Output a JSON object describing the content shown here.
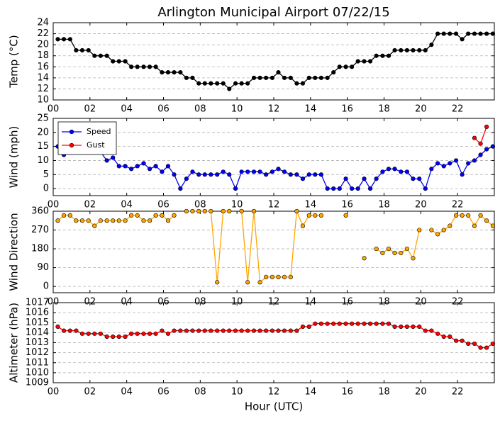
{
  "chart_data": [
    {
      "type": "line",
      "title": "Arlington Municipal Airport 07/22/15",
      "ylabel": "Temp (°C)",
      "x": [
        0.25,
        0.58,
        0.92,
        1.25,
        1.58,
        1.92,
        2.25,
        2.58,
        2.92,
        3.25,
        3.58,
        3.92,
        4.25,
        4.58,
        4.92,
        5.25,
        5.58,
        5.92,
        6.25,
        6.58,
        6.92,
        7.25,
        7.58,
        7.92,
        8.25,
        8.58,
        8.92,
        9.25,
        9.58,
        9.92,
        10.25,
        10.58,
        10.92,
        11.25,
        11.58,
        11.92,
        12.25,
        12.58,
        12.92,
        13.25,
        13.58,
        13.92,
        14.25,
        14.58,
        14.92,
        15.25,
        15.58,
        15.92,
        16.25,
        16.58,
        16.92,
        17.25,
        17.58,
        17.92,
        18.25,
        18.58,
        18.92,
        19.25,
        19.58,
        19.92,
        20.25,
        20.58,
        20.92,
        21.25,
        21.58,
        21.92,
        22.25,
        22.58,
        22.92,
        23.25,
        23.58,
        23.92
      ],
      "series": [
        {
          "name": "Temp",
          "color": "#000000",
          "values": [
            21,
            21,
            21,
            19,
            19,
            19,
            18,
            18,
            18,
            17,
            17,
            17,
            16,
            16,
            16,
            16,
            16,
            15,
            15,
            15,
            15,
            14,
            14,
            13,
            13,
            13,
            13,
            13,
            12,
            13,
            13,
            13,
            14,
            14,
            14,
            14,
            15,
            14,
            14,
            13,
            13,
            14,
            14,
            14,
            14,
            15,
            16,
            16,
            16,
            17,
            17,
            17,
            18,
            18,
            18,
            19,
            19,
            19,
            19,
            19,
            19,
            20,
            22,
            22,
            22,
            22,
            21,
            22,
            22,
            22,
            22,
            22
          ]
        }
      ],
      "xlim": [
        0,
        24
      ],
      "xticks": [
        {
          "value": 0,
          "label": "00"
        },
        {
          "value": 2,
          "label": "02"
        },
        {
          "value": 4,
          "label": "04"
        },
        {
          "value": 6,
          "label": "06"
        },
        {
          "value": 8,
          "label": "08"
        },
        {
          "value": 10,
          "label": "10"
        },
        {
          "value": 12,
          "label": "12"
        },
        {
          "value": 14,
          "label": "14"
        },
        {
          "value": 16,
          "label": "16"
        },
        {
          "value": 18,
          "label": "18"
        },
        {
          "value": 20,
          "label": "20"
        },
        {
          "value": 22,
          "label": "22"
        }
      ],
      "ylim": [
        10,
        24
      ],
      "yticks": [
        10,
        12,
        14,
        16,
        18,
        20,
        22,
        24
      ],
      "grid": true
    },
    {
      "type": "line",
      "ylabel": "Wind (mph)",
      "legend": "upper left",
      "x": [
        0.25,
        0.58,
        0.92,
        1.25,
        1.58,
        1.92,
        2.25,
        2.58,
        2.92,
        3.25,
        3.58,
        3.92,
        4.25,
        4.58,
        4.92,
        5.25,
        5.58,
        5.92,
        6.25,
        6.58,
        6.92,
        7.25,
        7.58,
        7.92,
        8.25,
        8.58,
        8.92,
        9.25,
        9.58,
        9.92,
        10.25,
        10.58,
        10.92,
        11.25,
        11.58,
        11.92,
        12.25,
        12.58,
        12.92,
        13.25,
        13.58,
        13.92,
        14.25,
        14.58,
        14.92,
        15.25,
        15.58,
        15.92,
        16.25,
        16.58,
        16.92,
        17.25,
        17.58,
        17.92,
        18.25,
        18.58,
        18.92,
        19.25,
        19.58,
        19.92,
        20.25,
        20.58,
        20.92,
        21.25,
        21.58,
        21.92,
        22.25,
        22.58,
        22.92,
        23.25,
        23.58,
        23.92
      ],
      "series": [
        {
          "name": "Speed",
          "color": "#0000ff",
          "values": [
            15,
            12,
            15,
            13,
            14,
            13,
            13,
            13,
            10,
            11,
            8,
            8,
            7,
            8,
            9,
            7,
            8,
            6,
            8,
            5,
            0,
            3.5,
            6,
            5,
            5,
            5,
            5,
            6,
            5,
            0,
            6,
            6,
            6,
            6,
            5,
            6,
            7,
            6,
            5,
            5,
            3.5,
            5,
            5,
            5,
            0,
            0,
            0,
            3.5,
            0,
            0,
            3.5,
            0,
            3.5,
            6,
            7,
            7,
            6,
            6,
            3.5,
            3.5,
            0,
            7,
            9,
            8,
            9,
            10,
            5,
            9,
            10,
            12,
            14,
            15
          ]
        },
        {
          "name": "Gust",
          "color": "#ff0000",
          "values": [
            null,
            null,
            null,
            null,
            null,
            null,
            null,
            null,
            null,
            null,
            null,
            null,
            null,
            null,
            null,
            null,
            null,
            null,
            null,
            null,
            null,
            null,
            null,
            null,
            null,
            null,
            null,
            null,
            null,
            null,
            null,
            null,
            null,
            null,
            null,
            null,
            null,
            null,
            null,
            null,
            null,
            null,
            null,
            null,
            null,
            null,
            null,
            null,
            null,
            null,
            null,
            null,
            null,
            null,
            null,
            null,
            null,
            null,
            null,
            null,
            null,
            null,
            null,
            null,
            null,
            null,
            null,
            null,
            18,
            16,
            22,
            null
          ]
        }
      ],
      "xlim": [
        0,
        24
      ],
      "xticks": [
        {
          "value": 0,
          "label": "00"
        },
        {
          "value": 2,
          "label": "02"
        },
        {
          "value": 4,
          "label": "04"
        },
        {
          "value": 6,
          "label": "06"
        },
        {
          "value": 8,
          "label": "08"
        },
        {
          "value": 10,
          "label": "10"
        },
        {
          "value": 12,
          "label": "12"
        },
        {
          "value": 14,
          "label": "14"
        },
        {
          "value": 16,
          "label": "16"
        },
        {
          "value": 18,
          "label": "18"
        },
        {
          "value": 20,
          "label": "20"
        },
        {
          "value": 22,
          "label": "22"
        }
      ],
      "ylim": [
        -2.5,
        25
      ],
      "yticks": [
        0,
        5,
        10,
        15,
        20,
        25
      ],
      "grid": true
    },
    {
      "type": "line",
      "ylabel": "Wind Direction",
      "x": [
        0.25,
        0.58,
        0.92,
        1.25,
        1.58,
        1.92,
        2.25,
        2.58,
        2.92,
        3.25,
        3.58,
        3.92,
        4.25,
        4.58,
        4.92,
        5.25,
        5.58,
        5.92,
        6.25,
        6.58,
        6.92,
        7.25,
        7.58,
        7.92,
        8.25,
        8.58,
        8.92,
        9.25,
        9.58,
        9.92,
        10.25,
        10.58,
        10.92,
        11.25,
        11.58,
        11.92,
        12.25,
        12.58,
        12.92,
        13.25,
        13.58,
        13.92,
        14.25,
        14.58,
        14.92,
        15.25,
        15.58,
        15.92,
        16.25,
        16.58,
        16.92,
        17.25,
        17.58,
        17.92,
        18.25,
        18.58,
        18.92,
        19.25,
        19.58,
        19.92,
        20.25,
        20.58,
        20.92,
        21.25,
        21.58,
        21.92,
        22.25,
        22.58,
        22.92,
        23.25,
        23.58,
        23.92
      ],
      "series": [
        {
          "name": "Direction",
          "color": "#ffa500",
          "values": [
            315,
            340,
            340,
            315,
            315,
            315,
            290,
            315,
            315,
            315,
            315,
            315,
            340,
            340,
            315,
            315,
            340,
            340,
            315,
            340,
            null,
            360,
            360,
            360,
            360,
            360,
            20,
            360,
            360,
            null,
            360,
            20,
            360,
            20,
            45,
            45,
            45,
            45,
            45,
            360,
            290,
            340,
            340,
            340,
            null,
            null,
            null,
            340,
            null,
            null,
            135,
            null,
            180,
            160,
            180,
            160,
            160,
            180,
            135,
            270,
            null,
            270,
            250,
            270,
            290,
            340,
            340,
            340,
            290,
            340,
            315,
            290
          ]
        }
      ],
      "xlim": [
        0,
        24
      ],
      "xticks": [
        {
          "value": 0,
          "label": "00"
        },
        {
          "value": 2,
          "label": "02"
        },
        {
          "value": 4,
          "label": "04"
        },
        {
          "value": 6,
          "label": "06"
        },
        {
          "value": 8,
          "label": "08"
        },
        {
          "value": 10,
          "label": "10"
        },
        {
          "value": 12,
          "label": "12"
        },
        {
          "value": 14,
          "label": "14"
        },
        {
          "value": 16,
          "label": "16"
        },
        {
          "value": 18,
          "label": "18"
        },
        {
          "value": 20,
          "label": "20"
        },
        {
          "value": 22,
          "label": "22"
        }
      ],
      "ylim": [
        -30,
        360
      ],
      "yticks": [
        0,
        90,
        180,
        270,
        360
      ],
      "grid": true
    },
    {
      "type": "line",
      "ylabel": "Altimeter (hPa)",
      "xlabel": "Hour (UTC)",
      "x": [
        0.25,
        0.58,
        0.92,
        1.25,
        1.58,
        1.92,
        2.25,
        2.58,
        2.92,
        3.25,
        3.58,
        3.92,
        4.25,
        4.58,
        4.92,
        5.25,
        5.58,
        5.92,
        6.25,
        6.58,
        6.92,
        7.25,
        7.58,
        7.92,
        8.25,
        8.58,
        8.92,
        9.25,
        9.58,
        9.92,
        10.25,
        10.58,
        10.92,
        11.25,
        11.58,
        11.92,
        12.25,
        12.58,
        12.92,
        13.25,
        13.58,
        13.92,
        14.25,
        14.58,
        14.92,
        15.25,
        15.58,
        15.92,
        16.25,
        16.58,
        16.92,
        17.25,
        17.58,
        17.92,
        18.25,
        18.58,
        18.92,
        19.25,
        19.58,
        19.92,
        20.25,
        20.58,
        20.92,
        21.25,
        21.58,
        21.92,
        22.25,
        22.58,
        22.92,
        23.25,
        23.58,
        23.92
      ],
      "series": [
        {
          "name": "Altimeter",
          "color": "#ff0000",
          "values": [
            1014.6,
            1014.2,
            1014.2,
            1014.2,
            1013.9,
            1013.9,
            1013.9,
            1013.9,
            1013.6,
            1013.6,
            1013.6,
            1013.6,
            1013.9,
            1013.9,
            1013.9,
            1013.9,
            1013.9,
            1014.2,
            1013.9,
            1014.2,
            1014.2,
            1014.2,
            1014.2,
            1014.2,
            1014.2,
            1014.2,
            1014.2,
            1014.2,
            1014.2,
            1014.2,
            1014.2,
            1014.2,
            1014.2,
            1014.2,
            1014.2,
            1014.2,
            1014.2,
            1014.2,
            1014.2,
            1014.2,
            1014.6,
            1014.6,
            1014.9,
            1014.9,
            1014.9,
            1014.9,
            1014.9,
            1014.9,
            1014.9,
            1014.9,
            1014.9,
            1014.9,
            1014.9,
            1014.9,
            1014.9,
            1014.6,
            1014.6,
            1014.6,
            1014.6,
            1014.6,
            1014.2,
            1014.2,
            1013.9,
            1013.6,
            1013.6,
            1013.2,
            1013.2,
            1012.9,
            1012.9,
            1012.5,
            1012.5,
            1012.9
          ]
        }
      ],
      "xlim": [
        0,
        24
      ],
      "xticks": [
        {
          "value": 0,
          "label": "00"
        },
        {
          "value": 2,
          "label": "02"
        },
        {
          "value": 4,
          "label": "04"
        },
        {
          "value": 6,
          "label": "06"
        },
        {
          "value": 8,
          "label": "08"
        },
        {
          "value": 10,
          "label": "10"
        },
        {
          "value": 12,
          "label": "12"
        },
        {
          "value": 14,
          "label": "14"
        },
        {
          "value": 16,
          "label": "16"
        },
        {
          "value": 18,
          "label": "18"
        },
        {
          "value": 20,
          "label": "20"
        },
        {
          "value": 22,
          "label": "22"
        }
      ],
      "ylim": [
        1009,
        1017
      ],
      "yticks": [
        1009,
        1010,
        1011,
        1012,
        1013,
        1014,
        1015,
        1016,
        1017
      ],
      "grid": true
    }
  ]
}
